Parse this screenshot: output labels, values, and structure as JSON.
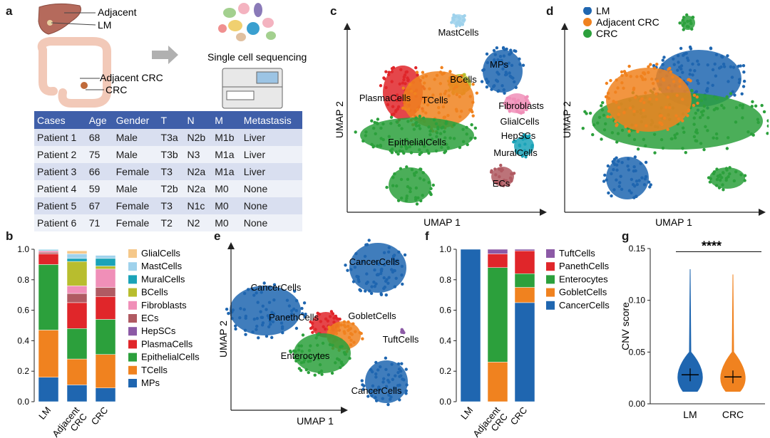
{
  "panel_labels": {
    "a": "a",
    "b": "b",
    "c": "c",
    "d": "d",
    "e": "e",
    "f": "f",
    "g": "g"
  },
  "panel_a": {
    "liver_labels": [
      "Adjacent",
      "LM"
    ],
    "colon_labels": [
      "Adjacent CRC",
      "CRC"
    ],
    "sequencing_label": "Single cell sequencing",
    "table": {
      "headers": [
        "Cases",
        "Age",
        "Gender",
        "T",
        "N",
        "M",
        "Metastasis"
      ],
      "rows": [
        [
          "Patient 1",
          "68",
          "Male",
          "T3a",
          "N2b",
          "M1b",
          "Liver"
        ],
        [
          "Patient 2",
          "75",
          "Male",
          "T3b",
          "N3",
          "M1a",
          "Liver"
        ],
        [
          "Patient 3",
          "66",
          "Female",
          "T3",
          "N2a",
          "M1a",
          "Liver"
        ],
        [
          "Patient 4",
          "59",
          "Male",
          "T2b",
          "N2a",
          "M0",
          "None"
        ],
        [
          "Patient 5",
          "67",
          "Female",
          "T3",
          "N1c",
          "M0",
          "None"
        ],
        [
          "Patient 6",
          "71",
          "Female",
          "T2",
          "N2",
          "M0",
          "None"
        ]
      ]
    }
  },
  "colors": {
    "GlialCells": "#f5c88a",
    "MastCells": "#9fd2ec",
    "MuralCells": "#1aa3b8",
    "BCells": "#b8bd2e",
    "Fibroblasts": "#f08fb8",
    "ECs": "#b05a62",
    "HepSCs": "#8c5aa6",
    "PlasmaCells": "#e0262a",
    "EpithelialCells": "#2ca03c",
    "TCells": "#f0821f",
    "MPs": "#1f66b0",
    "LM": "#1f66b0",
    "AdjacentCRC": "#f0821f",
    "CRC": "#2ca03c",
    "TuftCells": "#8c5aa6",
    "PanethCells": "#e0262a",
    "Enterocytes": "#2ca03c",
    "GobletCells": "#f0821f",
    "CancerCells": "#1f66b0",
    "table_header": "#3f5fa9"
  },
  "chart_data": [
    {
      "id": "b",
      "type": "bar",
      "stacked": true,
      "categories": [
        "LM",
        "Adjacent CRC",
        "CRC"
      ],
      "ylim": [
        0,
        1.0
      ],
      "yticks": [
        "0.0",
        "0.2",
        "0.4",
        "0.6",
        "0.8",
        "1.0"
      ],
      "legend": [
        "GlialCells",
        "MastCells",
        "MuralCells",
        "BCells",
        "Fibroblasts",
        "ECs",
        "HepSCs",
        "PlasmaCells",
        "EpithelialCells",
        "TCells",
        "MPs"
      ],
      "series": [
        {
          "name": "MPs",
          "values": [
            0.16,
            0.11,
            0.09
          ]
        },
        {
          "name": "TCells",
          "values": [
            0.31,
            0.17,
            0.22
          ]
        },
        {
          "name": "EpithelialCells",
          "values": [
            0.43,
            0.2,
            0.23
          ]
        },
        {
          "name": "PlasmaCells",
          "values": [
            0.07,
            0.17,
            0.15
          ]
        },
        {
          "name": "HepSCs",
          "values": [
            0.0,
            0.0,
            0.0
          ]
        },
        {
          "name": "ECs",
          "values": [
            0.01,
            0.06,
            0.06
          ]
        },
        {
          "name": "Fibroblasts",
          "values": [
            0.01,
            0.05,
            0.12
          ]
        },
        {
          "name": "BCells",
          "values": [
            0.0,
            0.16,
            0.02
          ]
        },
        {
          "name": "MuralCells",
          "values": [
            0.005,
            0.02,
            0.05
          ]
        },
        {
          "name": "MastCells",
          "values": [
            0.005,
            0.03,
            0.02
          ]
        },
        {
          "name": "GlialCells",
          "values": [
            0.0,
            0.02,
            0.0
          ]
        }
      ]
    },
    {
      "id": "c",
      "type": "scatter",
      "xlabel": "UMAP 1",
      "ylabel": "UMAP 2",
      "annotations": [
        "MastCells",
        "MPs",
        "BCells",
        "PlasmaCells",
        "TCells",
        "Fibroblasts",
        "GlialCells",
        "HepSCs",
        "EpithelialCells",
        "MuralCells",
        "ECs"
      ]
    },
    {
      "id": "d",
      "type": "scatter",
      "xlabel": "UMAP 1",
      "ylabel": "UMAP 2",
      "legend": [
        "LM",
        "Adjacent CRC",
        "CRC"
      ]
    },
    {
      "id": "e",
      "type": "scatter",
      "xlabel": "UMAP 1",
      "ylabel": "UMAP 2",
      "annotations": [
        "CancerCells",
        "CancerCells",
        "PanethCells",
        "GobletCells",
        "TuftCells",
        "Enterocytes",
        "CancerCells"
      ]
    },
    {
      "id": "f",
      "type": "bar",
      "stacked": true,
      "categories": [
        "LM",
        "Adjacent CRC",
        "CRC"
      ],
      "ylim": [
        0,
        1.0
      ],
      "yticks": [
        "0.0",
        "0.2",
        "0.4",
        "0.6",
        "0.8",
        "1.0"
      ],
      "legend": [
        "TuftCells",
        "PanethCells",
        "Enterocytes",
        "GobletCells",
        "CancerCells"
      ],
      "series": [
        {
          "name": "CancerCells",
          "values": [
            1.0,
            0.0,
            0.65
          ]
        },
        {
          "name": "GobletCells",
          "values": [
            0.0,
            0.26,
            0.1
          ]
        },
        {
          "name": "Enterocytes",
          "values": [
            0.0,
            0.62,
            0.09
          ]
        },
        {
          "name": "PanethCells",
          "values": [
            0.0,
            0.09,
            0.15
          ]
        },
        {
          "name": "TuftCells",
          "values": [
            0.0,
            0.03,
            0.01
          ]
        }
      ]
    },
    {
      "id": "g",
      "type": "scatter",
      "subtype": "violin",
      "categories": [
        "LM",
        "CRC"
      ],
      "ylabel": "CNV score",
      "ylim": [
        0,
        0.15
      ],
      "yticks": [
        "0.00",
        "0.05",
        "0.10",
        "0.15"
      ],
      "medians": [
        0.028,
        0.026
      ],
      "max_values": [
        0.13,
        0.125
      ],
      "significance": "****"
    }
  ]
}
